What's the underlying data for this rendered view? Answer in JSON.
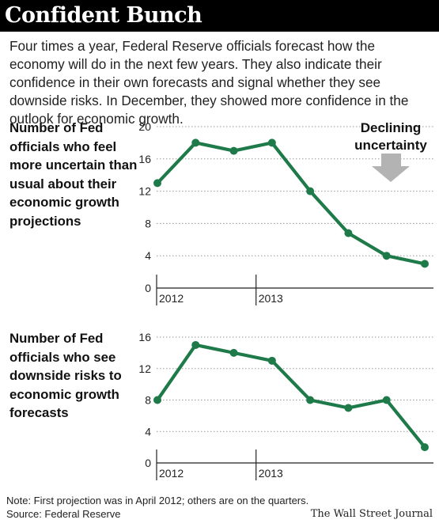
{
  "header": {
    "title": "Confident Bunch"
  },
  "intro": "Four times a year, Federal Reserve officials forecast how the economy will do in the next few years. They also indicate their confidence in their own forecasts and signal whether they see downside risks. In December, they showed more confidence in the outlook for economic growth.",
  "colors": {
    "line": "#1f7a4a",
    "grid": "#999999",
    "arrow": "#b3b3b3",
    "header_bg": "#000000"
  },
  "chart_data": [
    {
      "type": "line",
      "title": "Number of Fed officials who feel more uncertain than usual about their economic growth projections",
      "annotation": "Declining uncertainty",
      "x_labels": [
        "2012",
        "2013"
      ],
      "yticks": [
        0,
        4,
        8,
        12,
        16,
        20
      ],
      "ylim": [
        0,
        20
      ],
      "grid": true,
      "series": [
        {
          "values": [
            13,
            18,
            17,
            18,
            12,
            6.8,
            4,
            3
          ]
        }
      ]
    },
    {
      "type": "line",
      "title": "Number of Fed officials who see downside risks to economic growth forecasts",
      "x_labels": [
        "2012",
        "2013"
      ],
      "yticks": [
        0,
        4,
        8,
        12,
        16
      ],
      "ylim": [
        0,
        16
      ],
      "grid": true,
      "series": [
        {
          "values": [
            8,
            15,
            14,
            13,
            8,
            7,
            8,
            2
          ]
        }
      ]
    }
  ],
  "footer": {
    "note": "Note: First projection was in April 2012; others are on the quarters.",
    "source": "Source: Federal Reserve",
    "credit": "The Wall Street Journal"
  }
}
